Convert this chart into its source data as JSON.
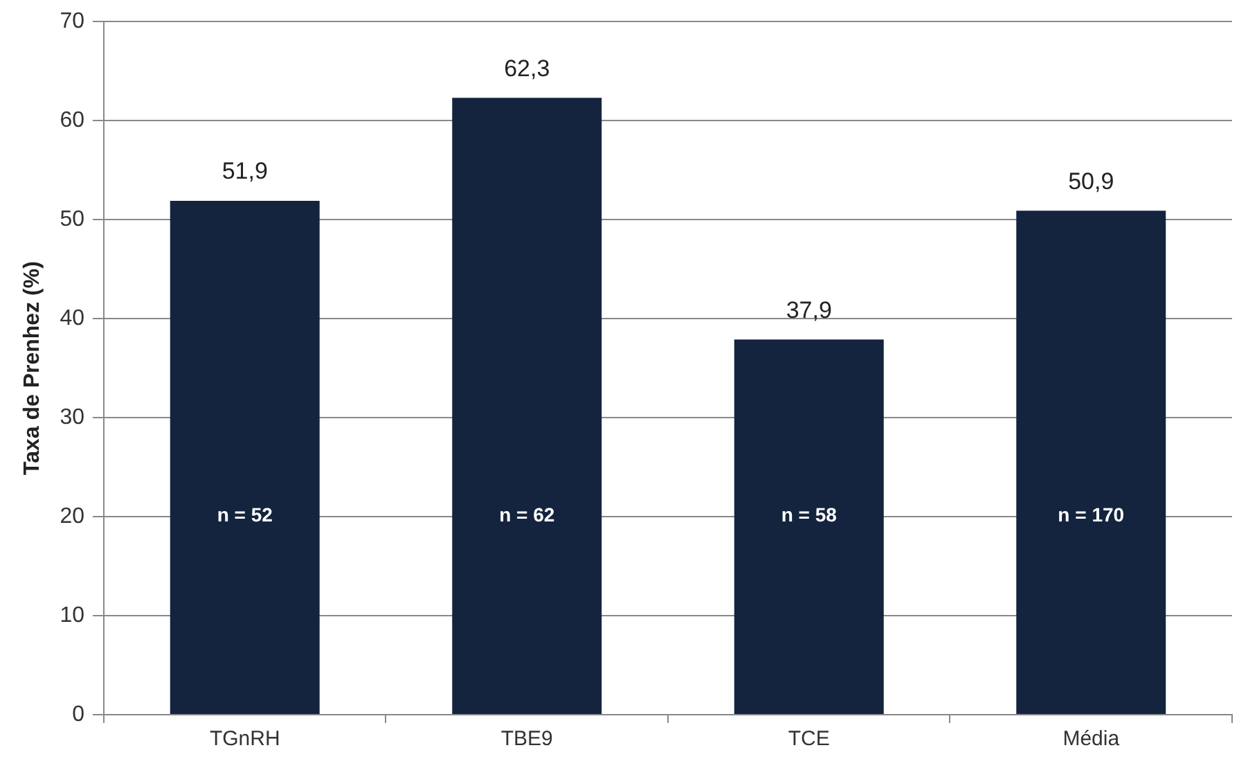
{
  "chart_data": {
    "type": "bar",
    "ylabel": "Taxa de Prenhez (%)",
    "categories": [
      "TGnRH",
      "TBE9",
      "TCE",
      "Média"
    ],
    "values": [
      51.9,
      62.3,
      37.9,
      50.9
    ],
    "value_labels": [
      "51,9",
      "62,3",
      "37,9",
      "50,9"
    ],
    "color": "#14243f",
    "ylim": [
      0,
      70
    ],
    "yticks": [
      0,
      10,
      20,
      30,
      40,
      50,
      60,
      70
    ],
    "grid": "y",
    "legend": false,
    "annotations": [
      "n = 52",
      "n = 62",
      "n = 58",
      "n = 170"
    ]
  }
}
